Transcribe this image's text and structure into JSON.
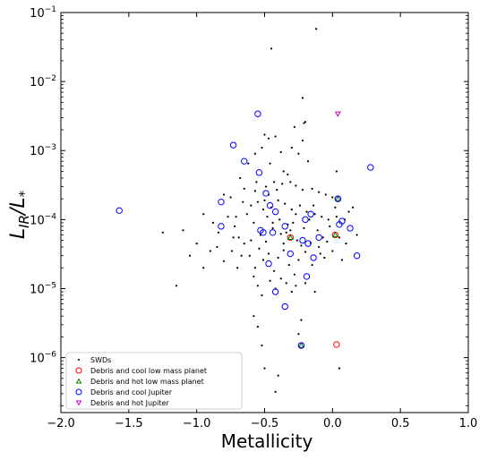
{
  "chart_data": {
    "type": "scatter",
    "xlabel": "Metallicity",
    "ylabel_main": "L",
    "ylabel_sub1": "IR",
    "ylabel_sep": "/L",
    "ylabel_sub2": "*",
    "xlim": [
      -2.0,
      1.0
    ],
    "ylim": [
      1.6e-07,
      0.1
    ],
    "yscale": "log",
    "grid": false,
    "legend_position": "lower-left",
    "x_ticks": [
      {
        "value": -2.0,
        "label": "−2.0"
      },
      {
        "value": -1.5,
        "label": "−1.5"
      },
      {
        "value": -1.0,
        "label": "−1.0"
      },
      {
        "value": -0.5,
        "label": "−0.5"
      },
      {
        "value": 0.0,
        "label": "0.0"
      },
      {
        "value": 0.5,
        "label": "0.5"
      },
      {
        "value": 1.0,
        "label": "1.0"
      }
    ],
    "y_ticks": [
      {
        "value": 1e-06,
        "base": "10",
        "exp": "−6"
      },
      {
        "value": 1e-05,
        "base": "10",
        "exp": "−5"
      },
      {
        "value": 0.0001,
        "base": "10",
        "exp": "−4"
      },
      {
        "value": 0.001,
        "base": "10",
        "exp": "−3"
      },
      {
        "value": 0.01,
        "base": "10",
        "exp": "−2"
      },
      {
        "value": 0.1,
        "base": "10",
        "exp": "−1"
      }
    ],
    "series": [
      {
        "name": "SWDs",
        "marker": "dot",
        "color": "#000000",
        "points": [
          [
            -0.12,
            0.058
          ],
          [
            -0.45,
            0.03
          ],
          [
            -0.22,
            0.0058
          ],
          [
            -0.2,
            0.0026
          ],
          [
            -0.21,
            0.0025
          ],
          [
            -0.28,
            0.0022
          ],
          [
            -0.5,
            0.0017
          ],
          [
            -0.52,
            0.0011
          ],
          [
            -0.3,
            0.0011
          ],
          [
            -0.22,
            0.0014
          ],
          [
            -0.38,
            0.00095
          ],
          [
            -0.42,
            0.0016
          ],
          [
            -0.46,
            0.00065
          ],
          [
            -0.57,
            0.0009
          ],
          [
            -0.47,
            0.0015
          ],
          [
            -0.25,
            0.0009
          ],
          [
            -0.18,
            0.0007
          ],
          [
            0.03,
            0.0005
          ],
          [
            -0.62,
            0.00065
          ],
          [
            -0.68,
            0.0004
          ],
          [
            -0.56,
            0.00035
          ],
          [
            -0.49,
            0.0003
          ],
          [
            -0.43,
            0.00035
          ],
          [
            -0.37,
            0.00033
          ],
          [
            -0.31,
            0.00035
          ],
          [
            -0.27,
            0.00031
          ],
          [
            -0.22,
            0.00027
          ],
          [
            -0.15,
            0.00028
          ],
          [
            -0.1,
            0.00025
          ],
          [
            -0.05,
            0.00023
          ],
          [
            0.0,
            0.00021
          ],
          [
            -0.8,
            0.00023
          ],
          [
            -0.75,
            0.00021
          ],
          [
            -0.66,
            0.00018
          ],
          [
            -0.6,
            0.00016
          ],
          [
            -0.55,
            0.00018
          ],
          [
            -0.5,
            0.00019
          ],
          [
            -0.45,
            0.00015
          ],
          [
            -0.4,
            0.00019
          ],
          [
            -0.35,
            0.00017
          ],
          [
            -0.3,
            0.00014
          ],
          [
            -0.24,
            0.00016
          ],
          [
            -0.19,
            0.00013
          ],
          [
            -0.13,
            0.00012
          ],
          [
            -0.08,
            0.00011
          ],
          [
            -0.03,
            0.0001
          ],
          [
            0.03,
            0.00011
          ],
          [
            0.09,
            0.0001
          ],
          [
            0.15,
            0.00015
          ],
          [
            -0.95,
            0.00012
          ],
          [
            -0.88,
            9e-05
          ],
          [
            -0.84,
            6.5e-05
          ],
          [
            -0.77,
            0.00011
          ],
          [
            -0.72,
            8e-05
          ],
          [
            -0.69,
            5.5e-05
          ],
          [
            -0.63,
            0.00012
          ],
          [
            -0.58,
            9e-05
          ],
          [
            -0.53,
            6e-05
          ],
          [
            -0.48,
            0.00011
          ],
          [
            -0.44,
            7.5e-05
          ],
          [
            -0.39,
            0.0001
          ],
          [
            -0.34,
            6.5e-05
          ],
          [
            -0.29,
            9e-05
          ],
          [
            -0.26,
            5e-05
          ],
          [
            -0.21,
            7.5e-05
          ],
          [
            -0.17,
            0.0001
          ],
          [
            -0.11,
            7e-05
          ],
          [
            -0.07,
            5.5e-05
          ],
          [
            -0.02,
            8e-05
          ],
          [
            0.05,
            5.5e-05
          ],
          [
            0.1,
            4.5e-05
          ],
          [
            0.18,
            6e-05
          ],
          [
            -1.25,
            6.5e-05
          ],
          [
            -1.15,
            1.1e-05
          ],
          [
            -1.1,
            7e-05
          ],
          [
            -1.05,
            3e-05
          ],
          [
            -1.0,
            4.5e-05
          ],
          [
            -0.95,
            2e-05
          ],
          [
            -0.9,
            3.5e-05
          ],
          [
            -0.85,
            4e-05
          ],
          [
            -0.8,
            2.5e-05
          ],
          [
            -0.74,
            3.5e-05
          ],
          [
            -0.7,
            2e-05
          ],
          [
            -0.65,
            4.5e-05
          ],
          [
            -0.61,
            3e-05
          ],
          [
            -0.57,
            2e-05
          ],
          [
            -0.54,
            3.8e-05
          ],
          [
            -0.51,
            2.6e-05
          ],
          [
            -0.47,
            3.2e-05
          ],
          [
            -0.43,
            1.8e-05
          ],
          [
            -0.4,
            2.8e-05
          ],
          [
            -0.36,
            3.6e-05
          ],
          [
            -0.32,
            2.2e-05
          ],
          [
            -0.28,
            1.6e-05
          ],
          [
            -0.25,
            2.6e-05
          ],
          [
            -0.2,
            3.4e-05
          ],
          [
            -0.15,
            2.2e-05
          ],
          [
            -0.1,
            4e-05
          ],
          [
            -0.06,
            2.8e-05
          ],
          [
            0.0,
            3.5e-05
          ],
          [
            0.07,
            2.6e-05
          ],
          [
            -0.58,
            1.5e-05
          ],
          [
            -0.55,
            1.1e-05
          ],
          [
            -0.52,
            8e-06
          ],
          [
            -0.46,
            1.3e-05
          ],
          [
            -0.42,
            1e-05
          ],
          [
            -0.38,
            1.4e-05
          ],
          [
            -0.34,
            1.2e-05
          ],
          [
            -0.3,
            9e-06
          ],
          [
            -0.27,
            1.1e-05
          ],
          [
            -0.2,
            1.2e-05
          ],
          [
            -0.13,
            9e-06
          ],
          [
            -0.58,
            4e-06
          ],
          [
            -0.23,
            3.5e-06
          ],
          [
            -0.25,
            2.2e-06
          ],
          [
            -0.55,
            2.8e-06
          ],
          [
            -0.52,
            1.5e-06
          ],
          [
            -0.5,
            7e-07
          ],
          [
            -0.4,
            5.5e-07
          ],
          [
            -0.42,
            3.2e-07
          ],
          [
            -0.8,
            1.1e-06
          ],
          [
            0.05,
            7e-07
          ],
          [
            -0.65,
            0.00028
          ],
          [
            -0.71,
            0.00011
          ],
          [
            -0.36,
            0.0005
          ],
          [
            -0.33,
            0.00045
          ],
          [
            -0.41,
            0.00027
          ],
          [
            -0.47,
            0.00023
          ],
          [
            -0.57,
            0.00026
          ],
          [
            -0.44,
            9e-05
          ],
          [
            -0.31,
            7e-05
          ],
          [
            -0.36,
            4.5e-05
          ],
          [
            -0.23,
            4.2e-05
          ],
          [
            -0.16,
            4.6e-05
          ],
          [
            -0.09,
            3.2e-05
          ],
          [
            -0.04,
            4.8e-05
          ],
          [
            -0.6,
            5e-05
          ],
          [
            -0.67,
            3e-05
          ],
          [
            -0.73,
            5.5e-05
          ],
          [
            -0.49,
            4.8e-05
          ],
          [
            -0.38,
            6.2e-05
          ],
          [
            -0.33,
            8.5e-05
          ],
          [
            -0.51,
            0.00014
          ],
          [
            -0.27,
            0.00012
          ],
          [
            -0.14,
            0.00016
          ],
          [
            0.02,
            0.00015
          ],
          [
            0.12,
            0.00013
          ]
        ]
      },
      {
        "name": "Debris and cool low mass planet",
        "marker": "circle",
        "color": "#ff0000",
        "points": [
          [
            0.04,
            0.0002
          ],
          [
            0.02,
            6e-05
          ],
          [
            -0.31,
            5.5e-05
          ],
          [
            -0.23,
            1.5e-06
          ],
          [
            0.03,
            1.55e-06
          ]
        ]
      },
      {
        "name": "Debris and hot low mass planet",
        "marker": "triangle-up",
        "color": "#008000",
        "points": [
          [
            0.04,
            0.0002
          ],
          [
            0.02,
            6e-05
          ],
          [
            -0.31,
            5.5e-05
          ],
          [
            -0.23,
            1.5e-06
          ]
        ]
      },
      {
        "name": "Debris and cool Jupiter",
        "marker": "circle",
        "color": "#0000ff",
        "points": [
          [
            -0.55,
            0.0034
          ],
          [
            -0.73,
            0.0012
          ],
          [
            -0.65,
            0.0007
          ],
          [
            -0.54,
            0.00048
          ],
          [
            -0.82,
            0.00018
          ],
          [
            -1.57,
            0.000135
          ],
          [
            -0.49,
            0.00024
          ],
          [
            -0.46,
            0.00016
          ],
          [
            -0.42,
            0.00013
          ],
          [
            -0.82,
            8e-05
          ],
          [
            -0.53,
            7e-05
          ],
          [
            -0.51,
            6.5e-05
          ],
          [
            -0.35,
            8e-05
          ],
          [
            -0.44,
            6.5e-05
          ],
          [
            -0.1,
            5.5e-05
          ],
          [
            -0.22,
            5e-05
          ],
          [
            -0.18,
            4.5e-05
          ],
          [
            -0.31,
            3.2e-05
          ],
          [
            -0.14,
            2.8e-05
          ],
          [
            -0.47,
            2.3e-05
          ],
          [
            -0.19,
            1.5e-05
          ],
          [
            -0.42,
            9e-06
          ],
          [
            -0.35,
            5.5e-06
          ],
          [
            -0.23,
            1.5e-06
          ],
          [
            -0.16,
            0.00012
          ],
          [
            -0.2,
            0.0001
          ],
          [
            0.05,
            8.5e-05
          ],
          [
            0.07,
            9.5e-05
          ],
          [
            0.13,
            7.5e-05
          ],
          [
            0.18,
            3e-05
          ],
          [
            0.28,
            0.00057
          ],
          [
            0.04,
            0.0002
          ]
        ]
      },
      {
        "name": "Debris and hot Jupiter",
        "marker": "triangle-down",
        "color": "#c000c0",
        "points": [
          [
            0.04,
            0.0034
          ]
        ]
      }
    ]
  }
}
